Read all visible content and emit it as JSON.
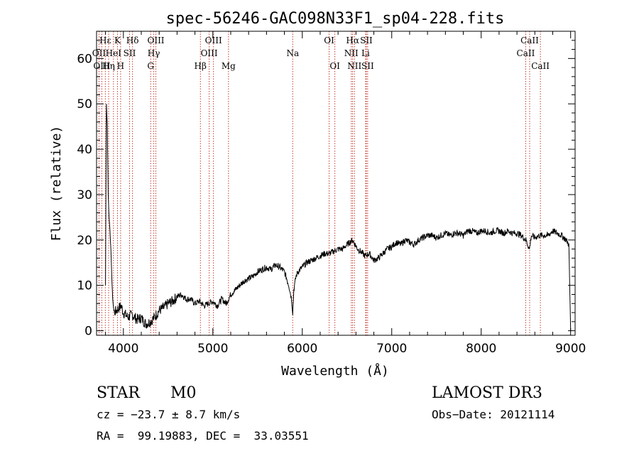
{
  "chart_data": {
    "type": "line",
    "title": "spec-56246-GAC098N33F1_sp04-228.fits",
    "xlabel": "Wavelength (Å)",
    "ylabel": "Flux (relative)",
    "xlim": [
      3700,
      9050
    ],
    "ylim": [
      -1,
      66
    ],
    "xticks": [
      4000,
      5000,
      6000,
      7000,
      8000,
      9000
    ],
    "yticks": [
      0,
      10,
      20,
      30,
      40,
      50,
      60
    ],
    "grid": false,
    "series": [
      {
        "name": "flux",
        "x": [
          3800,
          3810,
          3820,
          3830,
          3840,
          3850,
          3860,
          3870,
          3880,
          3890,
          3900,
          3925,
          3950,
          3975,
          4000,
          4050,
          4100,
          4150,
          4200,
          4250,
          4300,
          4350,
          4400,
          4450,
          4500,
          4550,
          4600,
          4650,
          4700,
          4750,
          4800,
          4850,
          4900,
          4950,
          5000,
          5050,
          5100,
          5150,
          5200,
          5250,
          5300,
          5350,
          5400,
          5450,
          5500,
          5550,
          5600,
          5650,
          5700,
          5750,
          5800,
          5850,
          5880,
          5893,
          5905,
          5930,
          5950,
          6000,
          6050,
          6100,
          6150,
          6200,
          6250,
          6300,
          6350,
          6400,
          6450,
          6500,
          6530,
          6563,
          6590,
          6620,
          6650,
          6700,
          6750,
          6800,
          6850,
          6900,
          6950,
          7000,
          7050,
          7100,
          7150,
          7200,
          7250,
          7300,
          7350,
          7400,
          7450,
          7500,
          7550,
          7600,
          7650,
          7700,
          7750,
          7800,
          7850,
          7900,
          7950,
          8000,
          8050,
          8100,
          8150,
          8200,
          8250,
          8300,
          8350,
          8400,
          8450,
          8500,
          8540,
          8560,
          8600,
          8650,
          8700,
          8750,
          8800,
          8850,
          8900,
          8950,
          8980,
          9000
        ],
        "y": [
          10,
          50,
          45,
          30,
          25,
          22,
          18,
          12,
          7,
          5,
          4,
          4.5,
          5,
          5.5,
          4,
          3,
          3.5,
          2.5,
          2.8,
          1.5,
          2,
          3,
          4.5,
          5,
          6,
          6.5,
          7.5,
          8,
          7,
          7,
          6,
          6.5,
          5.5,
          6,
          6.5,
          5.5,
          7,
          6,
          8,
          9,
          10,
          11,
          11.5,
          12,
          13,
          13.5,
          14,
          13.5,
          14.5,
          14,
          13,
          10,
          7,
          4,
          9,
          12,
          13,
          14,
          15,
          15.5,
          16,
          16.5,
          17,
          17,
          17.5,
          18,
          18,
          19,
          19.5,
          20,
          19,
          18,
          17.5,
          16.5,
          17,
          15.5,
          16,
          17,
          18,
          18.5,
          19.5,
          19,
          20,
          19.5,
          19,
          20,
          20.5,
          21,
          21,
          20.5,
          21,
          21.5,
          21,
          21.5,
          21.5,
          21,
          22,
          22,
          21.5,
          22,
          22,
          21.5,
          22,
          22,
          21.5,
          22,
          21.5,
          21.5,
          21,
          20,
          18,
          21,
          20.5,
          21,
          21,
          21,
          22,
          21.5,
          21,
          20,
          19,
          0
        ]
      }
    ],
    "lines": [
      {
        "label": "Hε",
        "wave": 3798,
        "row": 1
      },
      {
        "label": "OII",
        "wave": 3727,
        "row": 2
      },
      {
        "label": "OIII",
        "wave": 3759,
        "row": 3
      },
      {
        "label": "K",
        "wave": 3934,
        "row": 1
      },
      {
        "label": "HeI",
        "wave": 3889,
        "row": 2
      },
      {
        "label": "Hη",
        "wave": 3835,
        "row": 3
      },
      {
        "label": "Hδ",
        "wave": 4102,
        "row": 1
      },
      {
        "label": "SII",
        "wave": 4069,
        "row": 2
      },
      {
        "label": "H",
        "wave": 3969,
        "row": 3
      },
      {
        "label": "OIII",
        "wave": 4363,
        "row": 1
      },
      {
        "label": "Hγ",
        "wave": 4340,
        "row": 2
      },
      {
        "label": "G",
        "wave": 4305,
        "row": 3
      },
      {
        "label": "OIII",
        "wave": 5007,
        "row": 1
      },
      {
        "label": "OIII",
        "wave": 4959,
        "row": 2
      },
      {
        "label": "Hβ",
        "wave": 4861,
        "row": 3
      },
      {
        "label": "Mg",
        "wave": 5175,
        "row": 3
      },
      {
        "label": "Na",
        "wave": 5893,
        "row": 2
      },
      {
        "label": "OI",
        "wave": 6300,
        "row": 1
      },
      {
        "label": "OI",
        "wave": 6364,
        "row": 3
      },
      {
        "label": "Hα",
        "wave": 6563,
        "row": 1
      },
      {
        "label": "SII",
        "wave": 6716,
        "row": 1
      },
      {
        "label": "NII",
        "wave": 6548,
        "row": 2
      },
      {
        "label": "Li",
        "wave": 6708,
        "row": 2
      },
      {
        "label": "NII",
        "wave": 6583,
        "row": 3
      },
      {
        "label": "SII",
        "wave": 6731,
        "row": 3
      },
      {
        "label": "CaII",
        "wave": 8542,
        "row": 1
      },
      {
        "label": "CaII",
        "wave": 8498,
        "row": 2
      },
      {
        "label": "CaII",
        "wave": 8662,
        "row": 3
      }
    ]
  },
  "info": {
    "class_label": "STAR",
    "subclass": "M0",
    "survey": "LAMOST DR3",
    "cz": "cz = −23.7 ± 8.7 km/s",
    "obs_date": "Obs−Date: 20121114",
    "coords": "RA =  99.19883, DEC =  33.03551"
  },
  "colors": {
    "spectrum": "#000000",
    "line_marker": "#c0392b",
    "axes": "#000000"
  }
}
